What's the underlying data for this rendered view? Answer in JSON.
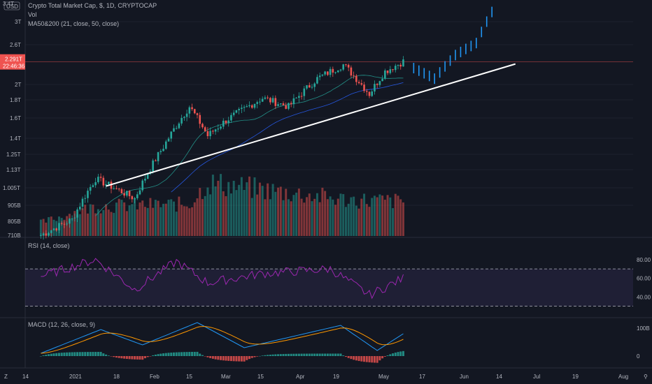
{
  "header": {
    "symbol_line": "Crypto Total Market Cap, $, 1D, CRYPTOCAP",
    "vol_label": "Vol",
    "ma_label": "MA50&200 (21, close, 50, close)",
    "currency_badge": "USD"
  },
  "price_panel": {
    "scale": "log",
    "y_ticks": [
      "3.4T",
      "3T",
      "2.6T",
      "2.291T",
      "2T",
      "1.8T",
      "1.6T",
      "1.4T",
      "1.25T",
      "1.13T",
      "1.005T",
      "905B",
      "805B",
      "710B"
    ],
    "price_tag": {
      "value": "2.291T",
      "countdown": "22:46:36"
    },
    "current_price": 2.291,
    "trend_line": {
      "from": {
        "date": "2021-01-14",
        "value": 1.0
      },
      "to": {
        "date": "2021-06-20",
        "value": 2.26
      }
    }
  },
  "rsi_panel": {
    "label": "RSI (14, close)",
    "ticks": [
      "80.00",
      "60.00",
      "40.00"
    ],
    "upper_band": 70,
    "lower_band": 30
  },
  "macd_panel": {
    "label": "MACD (12, 26, close, 9)",
    "ticks": [
      "100B",
      "0"
    ]
  },
  "time_axis": {
    "labels": [
      "14",
      "2021",
      "18",
      "Feb",
      "15",
      "Mar",
      "15",
      "Apr",
      "19",
      "May",
      "17",
      "Jun",
      "14",
      "Jul",
      "19",
      "Aug"
    ]
  },
  "colors": {
    "background": "#131722",
    "up": "#26a69a",
    "down": "#ef5350",
    "projection": "#2196f3",
    "trend_line": "#ffffff",
    "rsi_line": "#9c27b0",
    "macd_line": "#2196f3",
    "signal_line": "#ff9800",
    "price_tag": "#ef5350"
  },
  "chart_data": {
    "type": "candlestick",
    "x_range": [
      "2020-12-14",
      "2021-08-02"
    ],
    "ylim": [
      0.71,
      3.4
    ],
    "series": [
      {
        "name": "Price (close, $T)",
        "dates": [
          "2020-12-20",
          "2021-01-01",
          "2021-01-10",
          "2021-01-18",
          "2021-01-25",
          "2021-02-05",
          "2021-02-15",
          "2021-02-22",
          "2021-03-01",
          "2021-03-15",
          "2021-03-25",
          "2021-04-05",
          "2021-04-15",
          "2021-04-25",
          "2021-05-01",
          "2021-05-08"
        ],
        "values": [
          0.72,
          0.8,
          1.05,
          0.98,
          0.92,
          1.3,
          1.7,
          1.4,
          1.55,
          1.8,
          1.7,
          2.05,
          2.25,
          1.85,
          2.15,
          2.3
        ]
      },
      {
        "name": "Projection",
        "dates": [
          "2021-05-12",
          "2021-05-20",
          "2021-05-28",
          "2021-06-05",
          "2021-06-12"
        ],
        "values": [
          2.2,
          2.05,
          2.4,
          2.6,
          3.3
        ]
      },
      {
        "name": "Vol",
        "dates": [
          "2020-12-20",
          "2021-01-10",
          "2021-02-15",
          "2021-02-22",
          "2021-04-15",
          "2021-05-08"
        ],
        "values": [
          20,
          45,
          48,
          80,
          55,
          52
        ]
      },
      {
        "name": "RSI",
        "dates": [
          "2020-12-20",
          "2021-01-10",
          "2021-01-25",
          "2021-02-10",
          "2021-02-22",
          "2021-03-15",
          "2021-04-10",
          "2021-04-25",
          "2021-05-08"
        ],
        "values": [
          62,
          80,
          48,
          78,
          55,
          65,
          70,
          42,
          60
        ]
      },
      {
        "name": "MACD",
        "dates": [
          "2020-12-20",
          "2021-01-12",
          "2021-01-28",
          "2021-02-18",
          "2021-03-08",
          "2021-04-14",
          "2021-04-28",
          "2021-05-08"
        ],
        "values": [
          10,
          95,
          40,
          120,
          30,
          110,
          20,
          80
        ]
      }
    ]
  }
}
